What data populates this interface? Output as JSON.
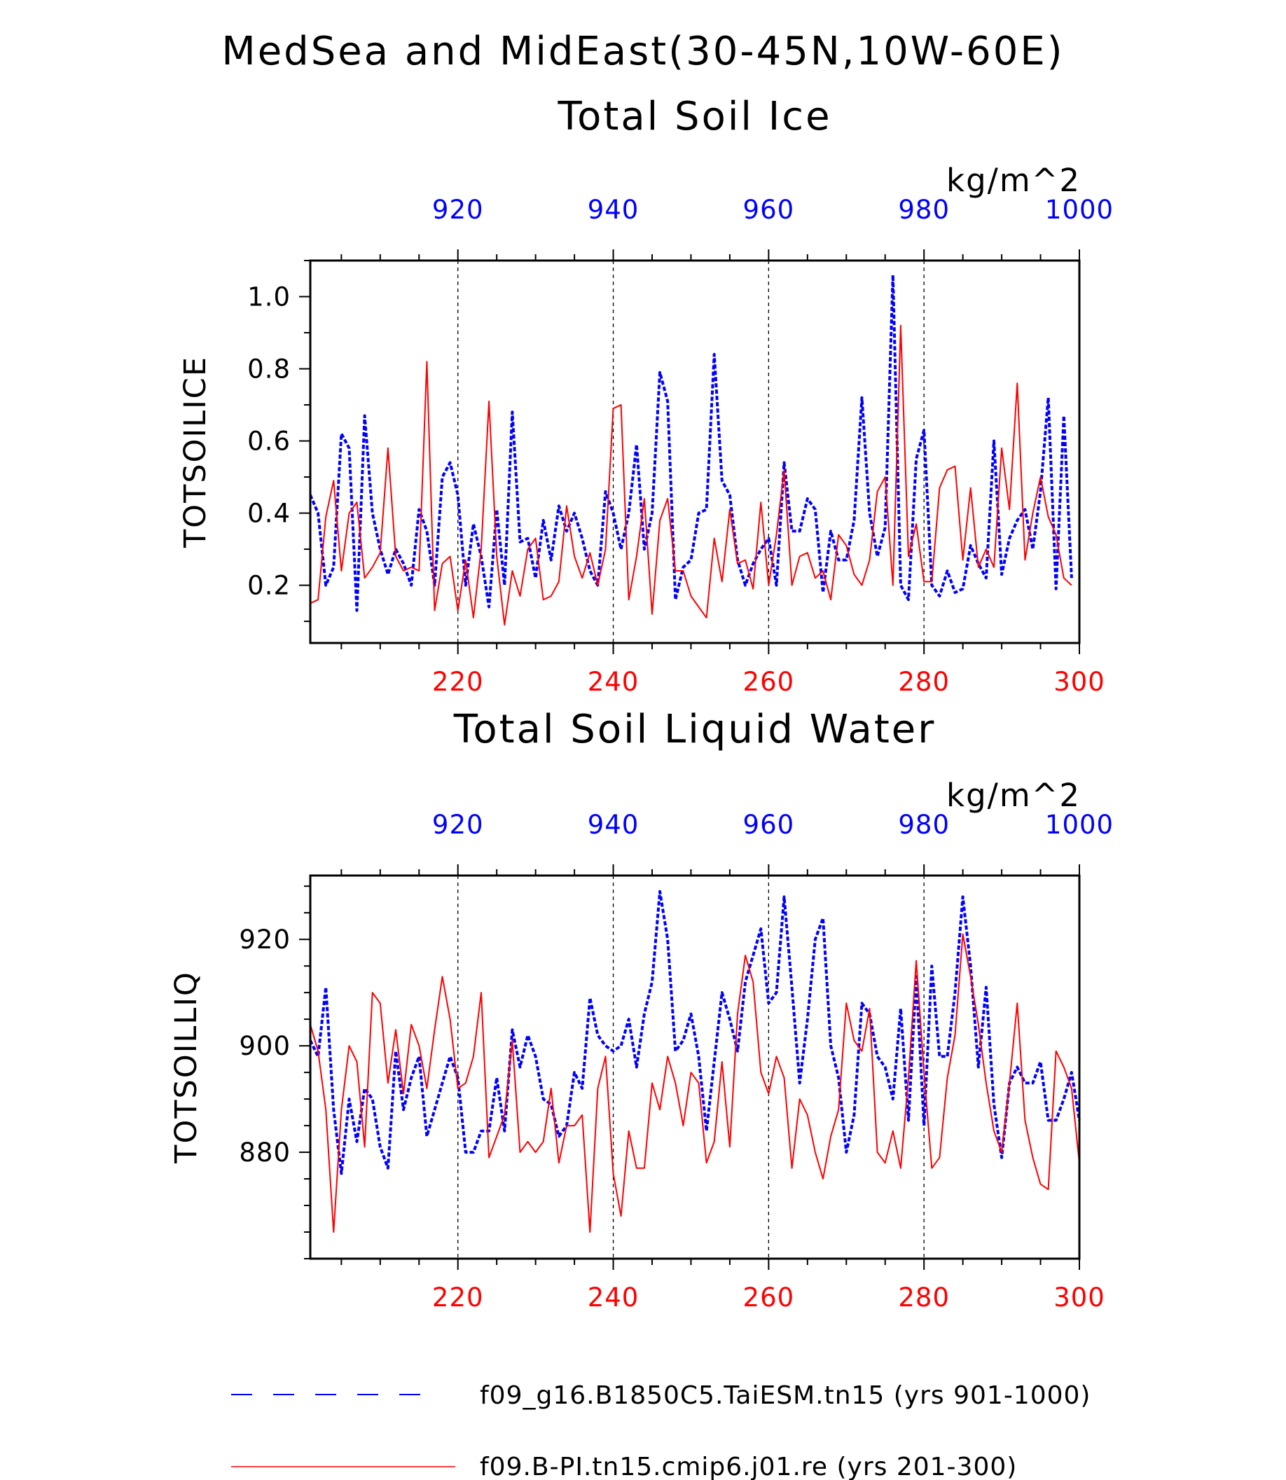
{
  "title_lines": [
    "MedSea and MidEast(30-45N,10W-60E)"
  ],
  "colors": {
    "series_a": "#0000ff",
    "series_b": "#ff0000",
    "axis": "#000000",
    "grid": "#000000"
  },
  "chart_data": [
    {
      "type": "line",
      "title": "Total Soil Ice",
      "ylabel": "TOTSOILICE",
      "units": "kg/m^2",
      "ylim": [
        0.04,
        1.1
      ],
      "yticks": [
        0.2,
        0.4,
        0.6,
        0.8,
        1.0
      ],
      "ytick_labels": [
        "0.2",
        "0.4",
        "0.6",
        "0.8",
        "1.0"
      ],
      "yminor_step": 0.1,
      "x_bottom": {
        "range": [
          201,
          300
        ],
        "ticks": [
          220,
          240,
          260,
          280,
          300
        ],
        "color": "#ff0000"
      },
      "x_top": {
        "range": [
          901,
          1000
        ],
        "ticks": [
          920,
          940,
          960,
          980,
          1000
        ],
        "color": "#0000ff"
      },
      "grid_x": [
        220,
        240,
        260,
        280
      ],
      "series": [
        {
          "name": "f09_g16.B1850C5.TaiESM.tn15 (yrs 901-1000)",
          "axis": "top",
          "style": "dashed",
          "color": "#0000ff",
          "values": [
            0.45,
            0.4,
            0.2,
            0.25,
            0.62,
            0.58,
            0.13,
            0.67,
            0.4,
            0.3,
            0.23,
            0.3,
            0.26,
            0.2,
            0.41,
            0.35,
            0.2,
            0.5,
            0.54,
            0.45,
            0.2,
            0.37,
            0.28,
            0.14,
            0.41,
            0.2,
            0.68,
            0.32,
            0.33,
            0.22,
            0.38,
            0.27,
            0.42,
            0.35,
            0.4,
            0.33,
            0.24,
            0.2,
            0.46,
            0.4,
            0.3,
            0.4,
            0.59,
            0.3,
            0.4,
            0.79,
            0.71,
            0.16,
            0.25,
            0.27,
            0.4,
            0.41,
            0.84,
            0.49,
            0.45,
            0.27,
            0.2,
            0.26,
            0.3,
            0.33,
            0.2,
            0.54,
            0.35,
            0.35,
            0.44,
            0.41,
            0.18,
            0.35,
            0.27,
            0.27,
            0.38,
            0.72,
            0.4,
            0.28,
            0.36,
            1.06,
            0.2,
            0.16,
            0.55,
            0.63,
            0.2,
            0.17,
            0.24,
            0.18,
            0.19,
            0.31,
            0.26,
            0.22,
            0.6,
            0.23,
            0.33,
            0.38,
            0.41,
            0.3,
            0.46,
            0.72,
            0.19,
            0.67,
            0.22
          ]
        },
        {
          "name": "f09.B-PI.tn15.cmip6.j01.re (yrs 201-300)",
          "axis": "bottom",
          "style": "solid",
          "color": "#ff0000",
          "values": [
            0.15,
            0.16,
            0.39,
            0.49,
            0.24,
            0.4,
            0.43,
            0.22,
            0.25,
            0.29,
            0.58,
            0.28,
            0.24,
            0.25,
            0.24,
            0.82,
            0.13,
            0.26,
            0.28,
            0.13,
            0.27,
            0.11,
            0.3,
            0.71,
            0.28,
            0.09,
            0.24,
            0.17,
            0.3,
            0.33,
            0.16,
            0.17,
            0.21,
            0.42,
            0.28,
            0.22,
            0.29,
            0.2,
            0.3,
            0.69,
            0.7,
            0.16,
            0.28,
            0.44,
            0.12,
            0.38,
            0.44,
            0.24,
            0.24,
            0.17,
            0.14,
            0.11,
            0.33,
            0.21,
            0.41,
            0.26,
            0.27,
            0.19,
            0.43,
            0.2,
            0.34,
            0.52,
            0.2,
            0.28,
            0.29,
            0.22,
            0.24,
            0.16,
            0.34,
            0.31,
            0.23,
            0.2,
            0.27,
            0.46,
            0.5,
            0.2,
            0.92,
            0.28,
            0.37,
            0.21,
            0.21,
            0.47,
            0.52,
            0.53,
            0.27,
            0.47,
            0.25,
            0.3,
            0.25,
            0.58,
            0.41,
            0.76,
            0.27,
            0.4,
            0.5,
            0.39,
            0.34,
            0.22,
            0.2
          ]
        }
      ]
    },
    {
      "type": "line",
      "title": "Total Soil Liquid Water",
      "ylabel": "TOTSOILLIQ",
      "units": "kg/m^2",
      "ylim": [
        860,
        932
      ],
      "yticks": [
        880,
        900,
        920
      ],
      "ytick_labels": [
        "880",
        "900",
        "920"
      ],
      "yminor_step": 5,
      "x_bottom": {
        "range": [
          201,
          300
        ],
        "ticks": [
          220,
          240,
          260,
          280,
          300
        ],
        "color": "#ff0000"
      },
      "x_top": {
        "range": [
          901,
          1000
        ],
        "ticks": [
          920,
          940,
          960,
          980,
          1000
        ],
        "color": "#0000ff"
      },
      "grid_x": [
        220,
        240,
        260,
        280
      ],
      "series": [
        {
          "name": "f09_g16.B1850C5.TaiESM.tn15 (yrs 901-1000)",
          "axis": "top",
          "style": "dashed",
          "color": "#0000ff",
          "values": [
            901,
            898,
            911,
            888,
            876,
            890,
            882,
            892,
            890,
            881,
            877,
            899,
            888,
            894,
            898,
            883,
            888,
            893,
            898,
            894,
            880,
            880,
            884,
            884,
            894,
            884,
            903,
            896,
            902,
            898,
            890,
            889,
            883,
            885,
            895,
            892,
            909,
            902,
            900,
            899,
            900,
            905,
            896,
            906,
            912,
            929,
            920,
            899,
            901,
            906,
            898,
            884,
            897,
            910,
            905,
            899,
            912,
            917,
            922,
            908,
            910,
            928,
            911,
            893,
            905,
            920,
            924,
            900,
            894,
            880,
            887,
            908,
            906,
            898,
            896,
            890,
            907,
            886,
            913,
            885,
            915,
            898,
            898,
            910,
            928,
            915,
            896,
            911,
            889,
            879,
            893,
            896,
            893,
            893,
            897,
            886,
            886,
            890,
            895,
            886
          ]
        },
        {
          "name": "f09.B-PI.tn15.cmip6.j01.re (yrs 201-300)",
          "axis": "bottom",
          "style": "solid",
          "color": "#ff0000",
          "values": [
            904,
            899,
            888,
            865,
            888,
            900,
            897,
            881,
            910,
            908,
            893,
            903,
            891,
            904,
            900,
            892,
            903,
            913,
            905,
            892,
            893,
            898,
            910,
            879,
            883,
            887,
            901,
            880,
            882,
            880,
            882,
            892,
            878,
            885,
            885,
            887,
            865,
            892,
            898,
            876,
            868,
            884,
            877,
            877,
            893,
            888,
            898,
            893,
            885,
            895,
            893,
            878,
            882,
            897,
            881,
            906,
            917,
            912,
            895,
            891,
            898,
            894,
            877,
            890,
            887,
            880,
            875,
            883,
            888,
            908,
            901,
            899,
            907,
            880,
            878,
            884,
            877,
            894,
            916,
            895,
            877,
            879,
            894,
            902,
            921,
            913,
            904,
            893,
            884,
            880,
            893,
            908,
            886,
            879,
            874,
            873,
            899,
            896,
            892,
            878
          ]
        }
      ]
    }
  ],
  "legend": [
    {
      "label": "f09_g16.B1850C5.TaiESM.tn15 (yrs 901-1000)",
      "style": "dashed",
      "color": "#0000ff"
    },
    {
      "label": "f09.B-PI.tn15.cmip6.j01.re (yrs 201-300)",
      "style": "solid",
      "color": "#ff0000"
    }
  ]
}
